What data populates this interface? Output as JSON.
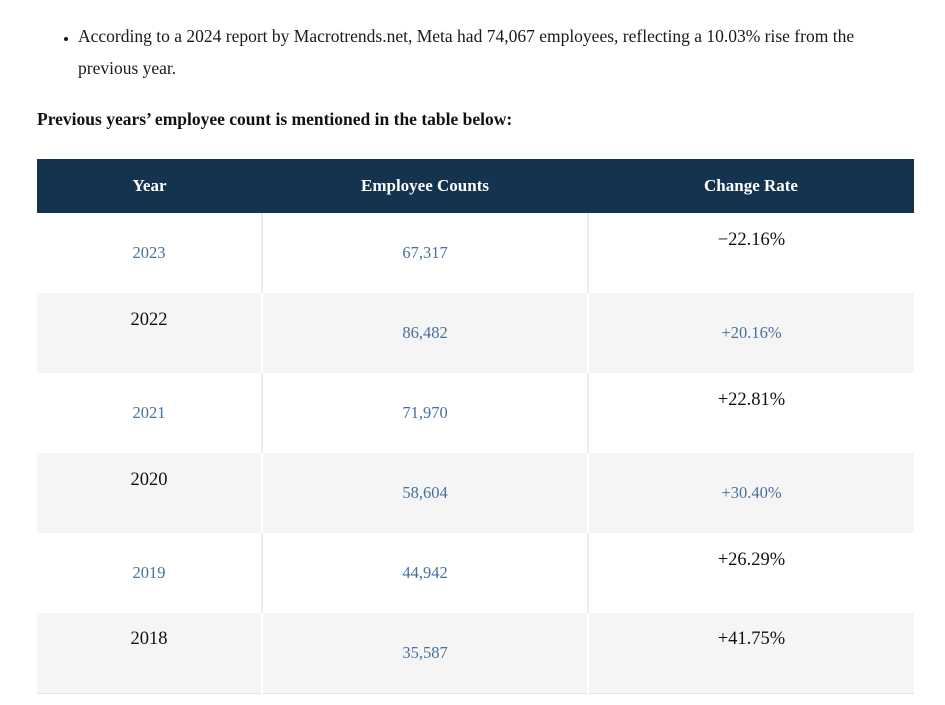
{
  "intro": {
    "bullet": "According to a 2024 report by Macrotrends.net, Meta had 74,067 employees, reflecting a 10.03% rise from the previous year.",
    "heading": "Previous years’ employee count is mentioned in the table below:"
  },
  "table": {
    "headers": [
      "Year",
      "Employee Counts",
      "Change Rate"
    ],
    "rows": [
      {
        "year": "2023",
        "count": "67,317",
        "change": "−22.16%",
        "year_style": "link",
        "count_style": "link",
        "change_style": "strong"
      },
      {
        "year": "2022",
        "count": "86,482",
        "change": "+20.16%",
        "year_style": "strong",
        "count_style": "link",
        "change_style": "link"
      },
      {
        "year": "2021",
        "count": "71,970",
        "change": "+22.81%",
        "year_style": "link",
        "count_style": "link",
        "change_style": "strong"
      },
      {
        "year": "2020",
        "count": "58,604",
        "change": "+30.40%",
        "year_style": "strong",
        "count_style": "link",
        "change_style": "link"
      },
      {
        "year": "2019",
        "count": "44,942",
        "change": "+26.29%",
        "year_style": "link",
        "count_style": "link",
        "change_style": "strong"
      },
      {
        "year": "2018",
        "count": "35,587",
        "change": "+41.75%",
        "year_style": "strong",
        "count_style": "link",
        "change_style": "strong"
      }
    ]
  },
  "colors": {
    "header_bg": "#14334f",
    "header_text": "#ffffff",
    "link_text": "#46719c",
    "stripe_bg": "#f5f5f5",
    "body_text": "#1a1a1a"
  }
}
